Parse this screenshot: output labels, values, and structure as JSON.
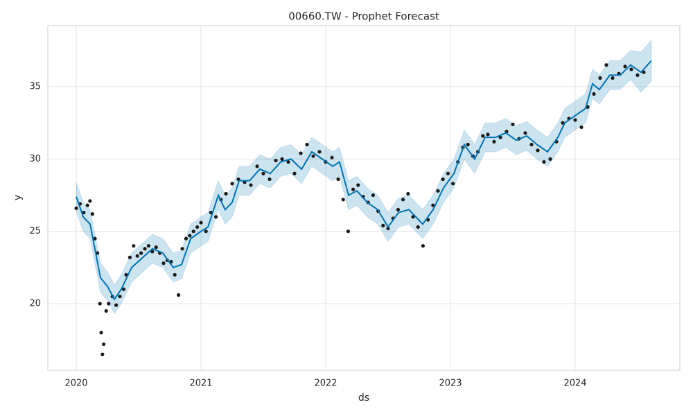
{
  "chart_data": {
    "type": "line",
    "title": "00660.TW - Prophet Forecast",
    "x_label": "ds",
    "y_label": "y",
    "xlim": [
      2019.772,
      2024.839
    ],
    "ylim": [
      15.4,
      39.22
    ],
    "xticks": [
      2020,
      2021,
      2022,
      2023,
      2024
    ],
    "yticks": [
      20,
      25,
      30,
      35
    ],
    "grid": true,
    "line_color": "#0072B2",
    "band_color": "#0072B2",
    "point_color": "#1a1a1a",
    "x": [
      2020.0,
      2020.056,
      2020.111,
      2020.156,
      2020.194,
      2020.25,
      2020.306,
      2020.361,
      2020.444,
      2020.611,
      2020.694,
      2020.778,
      2020.844,
      2020.917,
      2021.0,
      2021.056,
      2021.139,
      2021.194,
      2021.25,
      2021.306,
      2021.389,
      2021.472,
      2021.556,
      2021.639,
      2021.722,
      2021.806,
      2021.889,
      2021.972,
      2022.056,
      2022.111,
      2022.183,
      2022.25,
      2022.333,
      2022.417,
      2022.5,
      2022.583,
      2022.667,
      2022.778,
      2022.861,
      2022.944,
      2023.028,
      2023.111,
      2023.194,
      2023.278,
      2023.361,
      2023.444,
      2023.528,
      2023.611,
      2023.694,
      2023.778,
      2023.861,
      2023.917,
      2024.0,
      2024.083,
      2024.139,
      2024.194,
      2024.278,
      2024.361,
      2024.444,
      2024.528,
      2024.611
    ],
    "yhat": [
      27.4,
      26.0,
      25.5,
      23.5,
      21.8,
      21.2,
      20.3,
      21.0,
      22.5,
      23.8,
      23.5,
      22.5,
      22.7,
      24.5,
      25.0,
      25.3,
      27.5,
      26.5,
      27.0,
      28.5,
      28.5,
      29.3,
      29.0,
      29.8,
      30.0,
      29.3,
      30.5,
      30.0,
      29.5,
      29.8,
      27.5,
      27.8,
      27.0,
      26.5,
      25.3,
      26.3,
      26.5,
      25.5,
      26.5,
      28.0,
      29.0,
      31.0,
      30.0,
      31.5,
      31.5,
      31.8,
      31.3,
      31.6,
      31.0,
      30.5,
      31.5,
      32.5,
      33.0,
      33.5,
      35.2,
      34.8,
      35.8,
      35.8,
      36.5,
      36.0,
      36.8
    ],
    "yhat_lower": [
      26.4,
      25.0,
      24.5,
      22.5,
      20.8,
      20.2,
      19.3,
      20.0,
      21.5,
      22.8,
      22.5,
      21.5,
      21.7,
      23.5,
      24.0,
      24.3,
      26.5,
      25.5,
      26.0,
      27.5,
      27.5,
      28.3,
      28.0,
      28.8,
      29.0,
      28.3,
      29.5,
      29.0,
      28.5,
      28.8,
      26.5,
      26.8,
      26.0,
      25.5,
      24.3,
      25.3,
      25.5,
      24.5,
      25.5,
      27.0,
      28.0,
      30.0,
      29.0,
      30.5,
      30.5,
      30.8,
      30.3,
      30.6,
      30.0,
      29.5,
      30.5,
      31.5,
      32.0,
      32.5,
      34.2,
      33.8,
      34.8,
      34.8,
      35.5,
      34.6,
      35.4
    ],
    "yhat_upper": [
      28.4,
      27.0,
      26.5,
      24.5,
      22.8,
      22.2,
      21.3,
      22.0,
      23.5,
      24.8,
      24.5,
      23.5,
      23.7,
      25.5,
      26.0,
      26.3,
      28.5,
      27.5,
      28.0,
      29.5,
      29.5,
      30.3,
      30.0,
      30.8,
      31.0,
      30.3,
      31.5,
      31.0,
      30.5,
      30.8,
      28.5,
      28.8,
      28.0,
      27.5,
      26.3,
      27.3,
      27.5,
      26.5,
      27.5,
      29.0,
      30.0,
      32.0,
      31.0,
      32.5,
      32.5,
      32.8,
      32.3,
      32.6,
      32.0,
      31.5,
      32.5,
      33.5,
      34.0,
      34.5,
      36.2,
      35.8,
      36.8,
      36.8,
      37.5,
      37.4,
      38.2
    ],
    "points": {
      "x": [
        2020.0,
        2020.03,
        2020.06,
        2020.09,
        2020.11,
        2020.13,
        2020.15,
        2020.17,
        2020.19,
        2020.2,
        2020.21,
        2020.22,
        2020.24,
        2020.26,
        2020.29,
        2020.32,
        2020.35,
        2020.38,
        2020.4,
        2020.43,
        2020.46,
        2020.49,
        2020.52,
        2020.55,
        2020.58,
        2020.61,
        2020.64,
        2020.67,
        2020.7,
        2020.73,
        2020.76,
        2020.79,
        2020.82,
        2020.85,
        2020.88,
        2020.91,
        2020.94,
        2020.97,
        2021.0,
        2021.04,
        2021.08,
        2021.12,
        2021.16,
        2021.2,
        2021.25,
        2021.3,
        2021.35,
        2021.4,
        2021.45,
        2021.5,
        2021.55,
        2021.6,
        2021.65,
        2021.7,
        2021.75,
        2021.8,
        2021.85,
        2021.9,
        2021.95,
        2022.0,
        2022.05,
        2022.1,
        2022.14,
        2022.18,
        2022.22,
        2022.26,
        2022.3,
        2022.34,
        2022.38,
        2022.42,
        2022.46,
        2022.5,
        2022.54,
        2022.58,
        2022.62,
        2022.66,
        2022.7,
        2022.74,
        2022.78,
        2022.82,
        2022.86,
        2022.9,
        2022.94,
        2022.98,
        2023.02,
        2023.06,
        2023.1,
        2023.14,
        2023.18,
        2023.22,
        2023.26,
        2023.3,
        2023.35,
        2023.4,
        2023.45,
        2023.5,
        2023.55,
        2023.6,
        2023.65,
        2023.7,
        2023.75,
        2023.8,
        2023.85,
        2023.9,
        2023.95,
        2024.0,
        2024.05,
        2024.1,
        2024.15,
        2024.2,
        2024.25,
        2024.3,
        2024.35,
        2024.4,
        2024.45,
        2024.5,
        2024.55
      ],
      "y": [
        26.6,
        26.9,
        26.3,
        26.8,
        27.1,
        26.2,
        24.5,
        23.5,
        20.0,
        18.0,
        16.5,
        17.2,
        19.5,
        20.0,
        20.5,
        19.9,
        20.5,
        21.0,
        22.0,
        23.2,
        24.0,
        23.3,
        23.5,
        23.8,
        24.0,
        23.6,
        23.9,
        23.5,
        22.8,
        23.0,
        22.9,
        22.0,
        20.6,
        23.8,
        24.5,
        24.7,
        25.0,
        25.3,
        25.6,
        25.0,
        26.3,
        26.0,
        27.2,
        27.6,
        28.3,
        28.6,
        28.4,
        28.2,
        29.5,
        29.0,
        28.6,
        29.9,
        30.0,
        29.8,
        29.0,
        30.4,
        31.0,
        30.2,
        30.5,
        29.8,
        30.1,
        28.6,
        27.2,
        25.0,
        27.9,
        28.2,
        27.4,
        27.0,
        27.5,
        26.4,
        25.4,
        25.2,
        25.9,
        26.5,
        27.2,
        27.6,
        26.0,
        25.3,
        24.0,
        25.8,
        26.8,
        27.8,
        28.6,
        29.0,
        28.3,
        29.8,
        30.8,
        31.0,
        30.2,
        30.5,
        31.6,
        31.7,
        31.2,
        31.5,
        31.9,
        32.4,
        31.4,
        31.8,
        31.0,
        30.6,
        29.8,
        30.0,
        31.2,
        32.5,
        32.8,
        32.7,
        32.2,
        33.6,
        34.5,
        35.6,
        36.5,
        35.6,
        35.9,
        36.4,
        36.2,
        35.8,
        36.0
      ]
    }
  }
}
